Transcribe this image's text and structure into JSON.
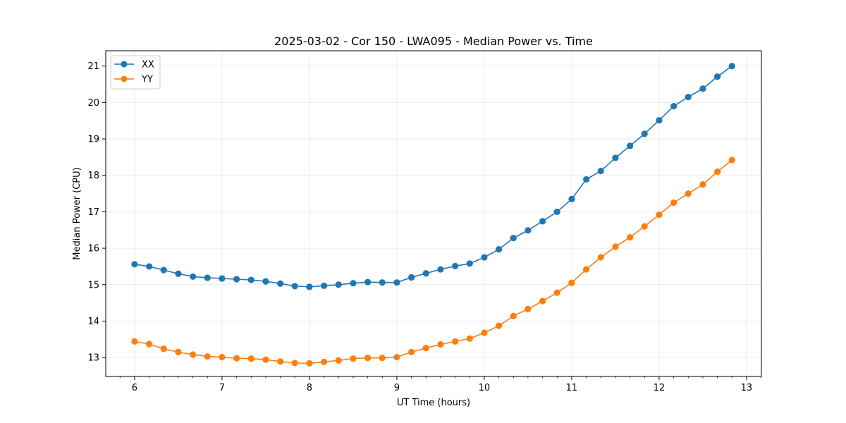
{
  "chart_data": {
    "type": "line",
    "title": "2025-03-02 - Cor 150 - LWA095 - Median Power vs. Time",
    "xlabel": "UT Time (hours)",
    "ylabel": "Median Power (CPU)",
    "xlim": [
      5.67,
      13.17
    ],
    "ylim": [
      12.48,
      21.42
    ],
    "xticks": [
      6,
      7,
      8,
      9,
      10,
      11,
      12,
      13
    ],
    "yticks": [
      13,
      14,
      15,
      16,
      17,
      18,
      19,
      20,
      21
    ],
    "grid": true,
    "legend_position": "top-left",
    "x": [
      6.0,
      6.167,
      6.333,
      6.5,
      6.667,
      6.833,
      7.0,
      7.167,
      7.333,
      7.5,
      7.667,
      7.833,
      8.0,
      8.167,
      8.333,
      8.5,
      8.667,
      8.833,
      9.0,
      9.167,
      9.333,
      9.5,
      9.667,
      9.833,
      10.0,
      10.167,
      10.333,
      10.5,
      10.667,
      10.833,
      11.0,
      11.167,
      11.333,
      11.5,
      11.667,
      11.833,
      12.0,
      12.167,
      12.333,
      12.5,
      12.667,
      12.833
    ],
    "series": [
      {
        "name": "XX",
        "color": "#1f77b4",
        "values": [
          15.56,
          15.5,
          15.4,
          15.3,
          15.22,
          15.19,
          15.17,
          15.15,
          15.13,
          15.09,
          15.03,
          14.96,
          14.94,
          14.97,
          15.0,
          15.04,
          15.07,
          15.06,
          15.06,
          15.2,
          15.31,
          15.42,
          15.51,
          15.58,
          15.75,
          15.97,
          16.28,
          16.49,
          16.74,
          17.0,
          17.35,
          17.89,
          18.12,
          18.48,
          18.81,
          19.14,
          19.51,
          19.9,
          20.15,
          20.38,
          20.71,
          21.0
        ]
      },
      {
        "name": "YY",
        "color": "#ff7f0e",
        "values": [
          13.44,
          13.37,
          13.24,
          13.15,
          13.08,
          13.03,
          13.01,
          12.98,
          12.97,
          12.94,
          12.89,
          12.85,
          12.84,
          12.88,
          12.92,
          12.97,
          12.99,
          12.99,
          13.01,
          13.15,
          13.26,
          13.36,
          13.44,
          13.52,
          13.68,
          13.87,
          14.14,
          14.33,
          14.55,
          14.78,
          15.05,
          15.42,
          15.75,
          16.04,
          16.3,
          16.6,
          16.92,
          17.25,
          17.5,
          17.75,
          18.1,
          18.42
        ]
      }
    ]
  }
}
